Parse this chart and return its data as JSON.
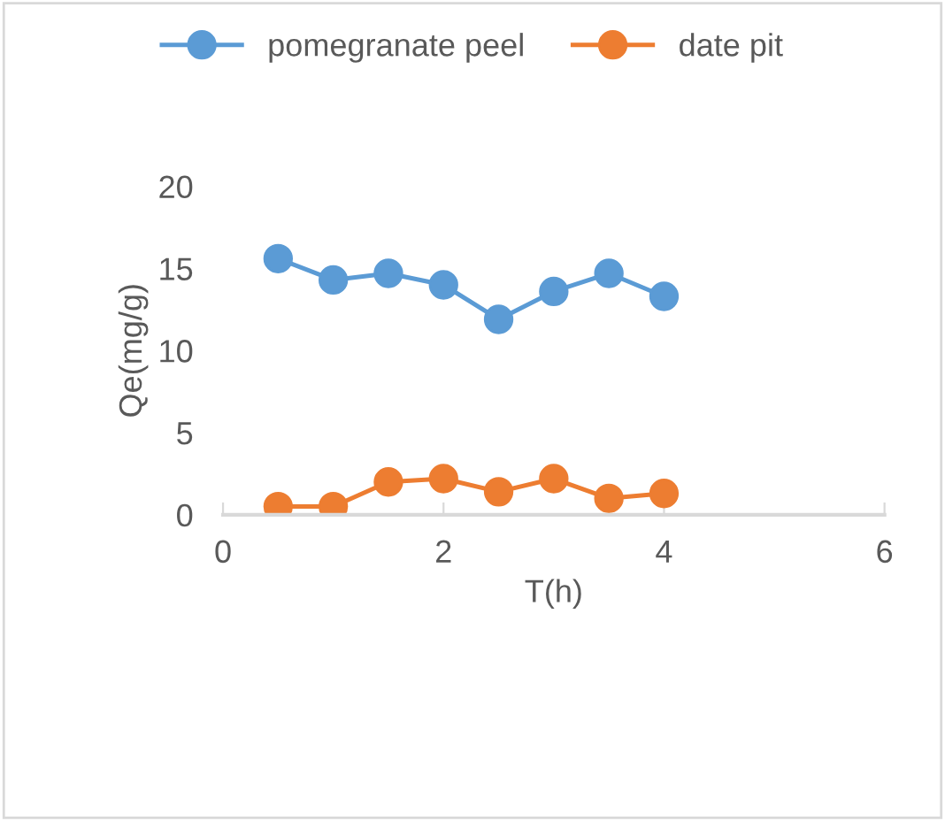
{
  "chart_data": {
    "type": "line",
    "xlabel": "T(h)",
    "ylabel": "Qe(mg/g)",
    "x": [
      0.5,
      1,
      1.5,
      2,
      2.5,
      3,
      3.5,
      4
    ],
    "series": [
      {
        "name": "pomegranate peel",
        "color": "#5b9bd5",
        "values": [
          15.6,
          14.3,
          14.7,
          14.0,
          11.9,
          13.6,
          14.7,
          13.3
        ]
      },
      {
        "name": "date pit",
        "color": "#ed7d31",
        "values": [
          0.5,
          0.5,
          2.0,
          2.2,
          1.4,
          2.2,
          1.0,
          1.3
        ]
      }
    ],
    "xlim": [
      0,
      6
    ],
    "xticks": [
      0,
      2,
      4,
      6
    ],
    "ylim": [
      0,
      20
    ],
    "yticks": [
      0,
      5,
      10,
      15,
      20
    ],
    "grid": false,
    "legend": "top",
    "marker": "circle",
    "line_style": "solid"
  }
}
